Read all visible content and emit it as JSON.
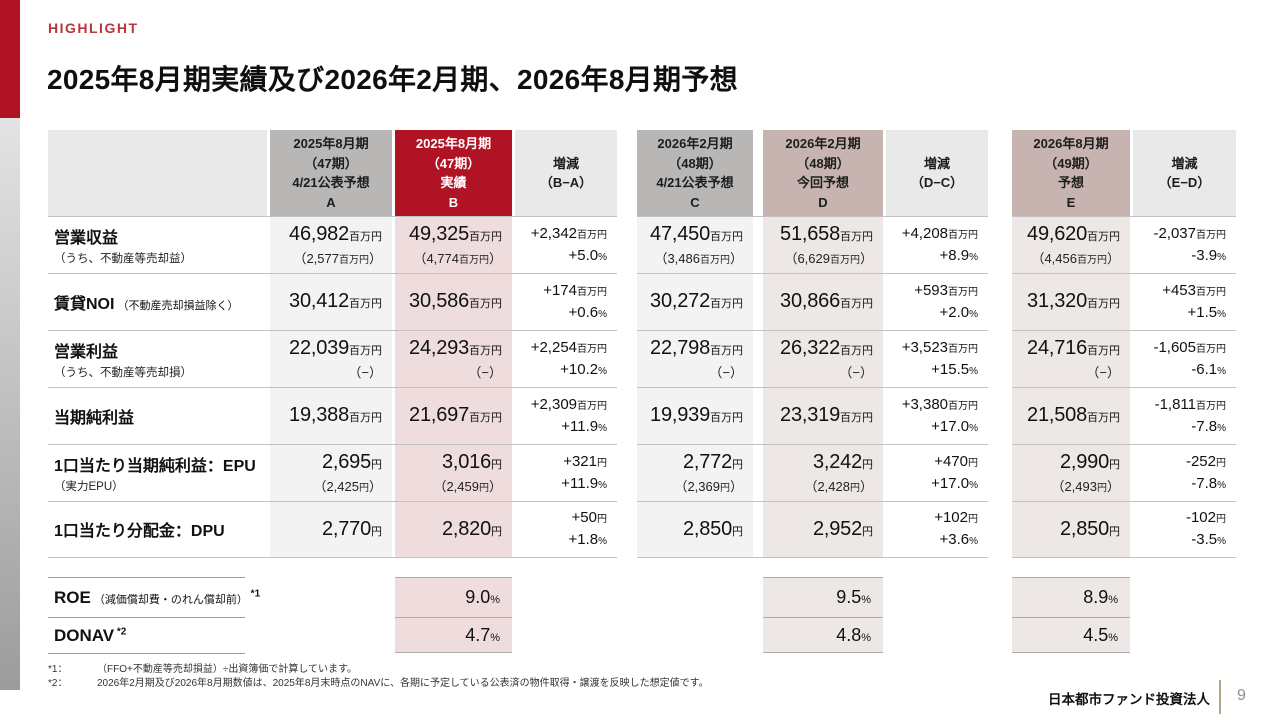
{
  "header": {
    "eyebrow": "HIGHLIGHT",
    "title": "2025年8月期実績及び2026年2月期、2026年8月期予想"
  },
  "colors": {
    "accent_red": "#b01323",
    "header_gray": "#b9b6b6",
    "header_mauve": "#c7b4b0",
    "header_lightgray": "#eae9e9",
    "body_gray": "#f4f3f3",
    "body_pink": "#efdcdd",
    "body_beige": "#ede8e5",
    "footer_divider_tan": "#b3a58a"
  },
  "table": {
    "columns": [
      {
        "id": "A",
        "style": "gray",
        "lines": "2025年8月期\n（47期）\n4/21公表予想\nA"
      },
      {
        "id": "B",
        "style": "red",
        "lines": "2025年8月期\n（47期）\n実績\nB"
      },
      {
        "id": "BA",
        "style": "diff",
        "lines": "増減\n（B−A）"
      },
      {
        "id": "C",
        "style": "gray",
        "lines": "2026年2月期\n（48期）\n4/21公表予想\nC"
      },
      {
        "id": "D",
        "style": "mauve",
        "lines": "2026年2月期\n（48期）\n今回予想\nD"
      },
      {
        "id": "DC",
        "style": "diff",
        "lines": "増減\n（D−C）"
      },
      {
        "id": "E",
        "style": "mauve",
        "lines": "2026年8月期\n（49期）\n予想\nE"
      },
      {
        "id": "ED",
        "style": "diff",
        "lines": "増減\n（E−D）"
      }
    ],
    "rows": [
      {
        "label": "営業収益",
        "label_note": "",
        "sub_label": "（うち、不動産等売却益）",
        "cells": {
          "A": {
            "v": "46,982",
            "u": "百万円",
            "s": [
              "（2,577",
              "百万円",
              "）"
            ]
          },
          "B": {
            "v": "49,325",
            "u": "百万円",
            "s": [
              "（4,774",
              "百万円",
              "）"
            ]
          },
          "BA": {
            "d": [
              [
                "+2,342",
                "百万円"
              ],
              [
                "+5.0",
                "%"
              ]
            ]
          },
          "C": {
            "v": "47,450",
            "u": "百万円",
            "s": [
              "（3,486",
              "百万円",
              "）"
            ]
          },
          "D": {
            "v": "51,658",
            "u": "百万円",
            "s": [
              "（6,629",
              "百万円",
              "）"
            ]
          },
          "DC": {
            "d": [
              [
                "+4,208",
                "百万円"
              ],
              [
                "+8.9",
                "%"
              ]
            ]
          },
          "E": {
            "v": "49,620",
            "u": "百万円",
            "s": [
              "（4,456",
              "百万円",
              "）"
            ]
          },
          "ED": {
            "d": [
              [
                "-2,037",
                "百万円"
              ],
              [
                "-3.9",
                "%"
              ]
            ]
          }
        }
      },
      {
        "label": "賃貸NOI",
        "label_note": "（不動産売却損益除く）",
        "sub_label": "",
        "cells": {
          "A": {
            "v": "30,412",
            "u": "百万円"
          },
          "B": {
            "v": "30,586",
            "u": "百万円"
          },
          "BA": {
            "d": [
              [
                "+174",
                "百万円"
              ],
              [
                "+0.6",
                "%"
              ]
            ]
          },
          "C": {
            "v": "30,272",
            "u": "百万円"
          },
          "D": {
            "v": "30,866",
            "u": "百万円"
          },
          "DC": {
            "d": [
              [
                "+593",
                "百万円"
              ],
              [
                "+2.0",
                "%"
              ]
            ]
          },
          "E": {
            "v": "31,320",
            "u": "百万円"
          },
          "ED": {
            "d": [
              [
                "+453",
                "百万円"
              ],
              [
                "+1.5",
                "%"
              ]
            ]
          }
        }
      },
      {
        "label": "営業利益",
        "label_note": "",
        "sub_label": "（うち、不動産等売却損）",
        "cells": {
          "A": {
            "v": "22,039",
            "u": "百万円",
            "s": [
              "（−）"
            ]
          },
          "B": {
            "v": "24,293",
            "u": "百万円",
            "s": [
              "（−）"
            ]
          },
          "BA": {
            "d": [
              [
                "+2,254",
                "百万円"
              ],
              [
                "+10.2",
                "%"
              ]
            ]
          },
          "C": {
            "v": "22,798",
            "u": "百万円",
            "s": [
              "（−）"
            ]
          },
          "D": {
            "v": "26,322",
            "u": "百万円",
            "s": [
              "（−）"
            ]
          },
          "DC": {
            "d": [
              [
                "+3,523",
                "百万円"
              ],
              [
                "+15.5",
                "%"
              ]
            ]
          },
          "E": {
            "v": "24,716",
            "u": "百万円",
            "s": [
              "（−）"
            ]
          },
          "ED": {
            "d": [
              [
                "-1,605",
                "百万円"
              ],
              [
                "-6.1",
                "%"
              ]
            ]
          }
        }
      },
      {
        "label": "当期純利益",
        "label_note": "",
        "sub_label": "",
        "cells": {
          "A": {
            "v": "19,388",
            "u": "百万円"
          },
          "B": {
            "v": "21,697",
            "u": "百万円"
          },
          "BA": {
            "d": [
              [
                "+2,309",
                "百万円"
              ],
              [
                "+11.9",
                "%"
              ]
            ]
          },
          "C": {
            "v": "19,939",
            "u": "百万円"
          },
          "D": {
            "v": "23,319",
            "u": "百万円"
          },
          "DC": {
            "d": [
              [
                "+3,380",
                "百万円"
              ],
              [
                "+17.0",
                "%"
              ]
            ]
          },
          "E": {
            "v": "21,508",
            "u": "百万円"
          },
          "ED": {
            "d": [
              [
                "-1,811",
                "百万円"
              ],
              [
                "-7.8",
                "%"
              ]
            ]
          }
        }
      },
      {
        "label": "1口当たり当期純利益：EPU",
        "label_note": "",
        "sub_label": "（実力EPU）",
        "cells": {
          "A": {
            "v": "2,695",
            "u": "円",
            "s": [
              "（2,425",
              "円",
              "）"
            ]
          },
          "B": {
            "v": "3,016",
            "u": "円",
            "s": [
              "（2,459",
              "円",
              "）"
            ]
          },
          "BA": {
            "d": [
              [
                "+321",
                "円"
              ],
              [
                "+11.9",
                "%"
              ]
            ]
          },
          "C": {
            "v": "2,772",
            "u": "円",
            "s": [
              "（2,369",
              "円",
              "）"
            ]
          },
          "D": {
            "v": "3,242",
            "u": "円",
            "s": [
              "（2,428",
              "円",
              "）"
            ]
          },
          "DC": {
            "d": [
              [
                "+470",
                "円"
              ],
              [
                "+17.0",
                "%"
              ]
            ]
          },
          "E": {
            "v": "2,990",
            "u": "円",
            "s": [
              "（2,493",
              "円",
              "）"
            ]
          },
          "ED": {
            "d": [
              [
                "-252",
                "円"
              ],
              [
                "-7.8",
                "%"
              ]
            ]
          }
        }
      },
      {
        "label": "1口当たり分配金：DPU",
        "label_note": "",
        "sub_label": "",
        "cells": {
          "A": {
            "v": "2,770",
            "u": "円"
          },
          "B": {
            "v": "2,820",
            "u": "円"
          },
          "BA": {
            "d": [
              [
                "+50",
                "円"
              ],
              [
                "+1.8",
                "%"
              ]
            ]
          },
          "C": {
            "v": "2,850",
            "u": "円"
          },
          "D": {
            "v": "2,952",
            "u": "円"
          },
          "DC": {
            "d": [
              [
                "+102",
                "円"
              ],
              [
                "+3.6",
                "%"
              ]
            ]
          },
          "E": {
            "v": "2,850",
            "u": "円"
          },
          "ED": {
            "d": [
              [
                "-102",
                "円"
              ],
              [
                "-3.5",
                "%"
              ]
            ]
          }
        }
      }
    ],
    "extra_rows": [
      {
        "label": "ROE",
        "note": "（減価償却費・のれん償却前）",
        "sup": "*1",
        "values": {
          "B": [
            "9.0",
            "%"
          ],
          "D": [
            "9.5",
            "%"
          ],
          "E": [
            "8.9",
            "%"
          ]
        }
      },
      {
        "label": "DONAV",
        "note": "",
        "sup": "*2",
        "values": {
          "B": [
            "4.7",
            "%"
          ],
          "D": [
            "4.8",
            "%"
          ],
          "E": [
            "4.5",
            "%"
          ]
        }
      }
    ]
  },
  "footnotes": [
    {
      "label": "*1：",
      "text": "（FFO+不動産等売却損益）÷出資簿価で計算しています。"
    },
    {
      "label": "*2：",
      "text": "2026年2月期及び2026年8月期数値は、2025年8月末時点のNAVに、各期に予定している公表済の物件取得・譲渡を反映した想定値です。"
    }
  ],
  "footer": {
    "company": "日本都市ファンド投資法人",
    "page": "9"
  }
}
